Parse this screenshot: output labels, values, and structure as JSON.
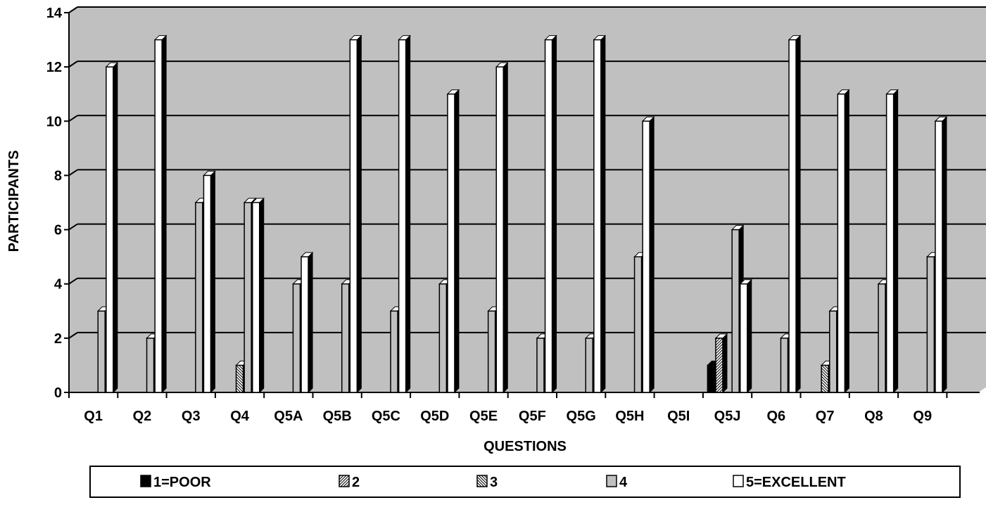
{
  "chart_data": {
    "type": "bar",
    "title": "",
    "xlabel": "QUESTIONS",
    "ylabel": "PARTICIPANTS",
    "ylim": [
      0,
      14
    ],
    "yticks": [
      0,
      2,
      4,
      6,
      8,
      10,
      12,
      14
    ],
    "grid": true,
    "legend_position": "bottom",
    "plot_background": "#c0c0c0",
    "categories": [
      "Q1",
      "Q2",
      "Q3",
      "Q4",
      "Q5A",
      "Q5B",
      "Q5C",
      "Q5D",
      "Q5E",
      "Q5F",
      "Q5G",
      "Q5H",
      "Q5I",
      "Q5J",
      "Q6",
      "Q7",
      "Q8",
      "Q9"
    ],
    "series": [
      {
        "name": "1=POOR",
        "pattern": "solid-black",
        "values": [
          0,
          0,
          0,
          0,
          0,
          0,
          0,
          0,
          0,
          0,
          0,
          0,
          0,
          1,
          0,
          0,
          0,
          0
        ]
      },
      {
        "name": "2",
        "pattern": "diagonal-forward",
        "values": [
          0,
          0,
          0,
          0,
          0,
          0,
          0,
          0,
          0,
          0,
          0,
          0,
          0,
          2,
          0,
          0,
          0,
          0
        ]
      },
      {
        "name": "3",
        "pattern": "diagonal-back",
        "values": [
          0,
          0,
          0,
          1,
          0,
          0,
          0,
          0,
          0,
          0,
          0,
          0,
          0,
          0,
          0,
          1,
          0,
          0
        ]
      },
      {
        "name": "4",
        "pattern": "gray",
        "values": [
          3,
          2,
          7,
          7,
          4,
          4,
          3,
          4,
          3,
          2,
          2,
          5,
          0,
          6,
          2,
          3,
          4,
          5
        ]
      },
      {
        "name": "5=EXCELLENT",
        "pattern": "white",
        "values": [
          12,
          13,
          8,
          7,
          5,
          13,
          13,
          11,
          12,
          13,
          13,
          10,
          0,
          4,
          13,
          11,
          11,
          10
        ]
      }
    ]
  }
}
